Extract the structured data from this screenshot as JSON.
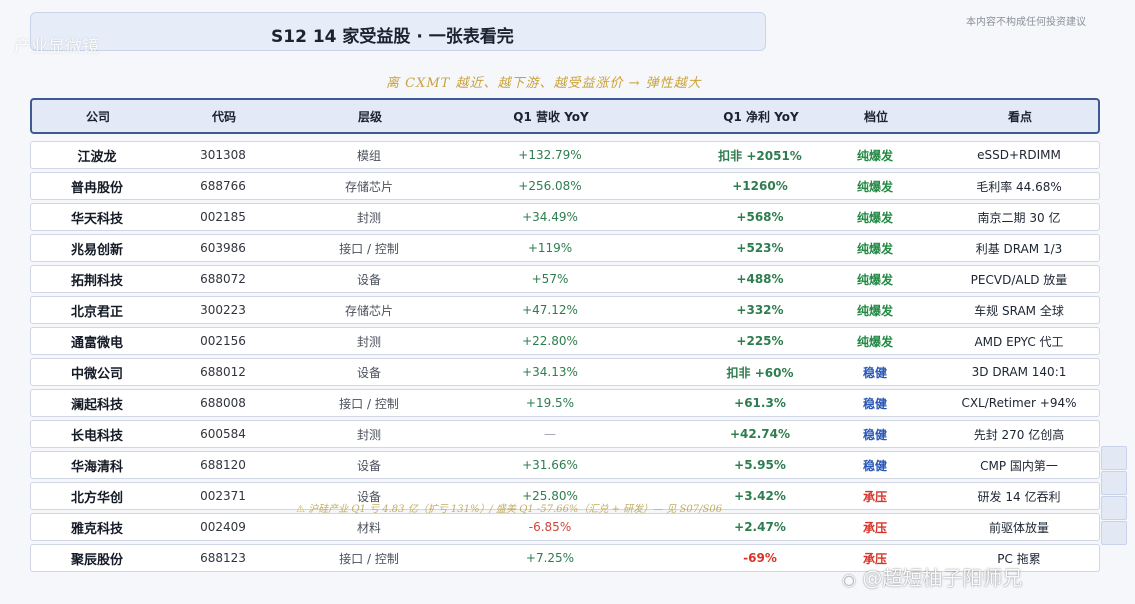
{
  "title": "S12  14 家受益股 · 一张表看完",
  "watermark_top": "产业显微镜",
  "disclaimer": "本内容不构成任何投资建议",
  "subtitle": "离  CXMT  越近、越下游、越受益涨价  →  弹性越大",
  "headers": {
    "company": "公司",
    "code": "代码",
    "layer": "层级",
    "rev": "Q1 营收 YoY",
    "profit": "Q1 净利 YoY",
    "tier": "档位",
    "view": "看点"
  },
  "rows": [
    {
      "company": "江波龙",
      "code": "301308",
      "layer": "模组",
      "rev": "+132.79%",
      "profit": "扣非 +2051%",
      "tier": "纯爆发",
      "view": "eSSD+RDIMM"
    },
    {
      "company": "普冉股份",
      "code": "688766",
      "layer": "存储芯片",
      "rev": "+256.08%",
      "profit": "+1260%",
      "tier": "纯爆发",
      "view": "毛利率 44.68%"
    },
    {
      "company": "华天科技",
      "code": "002185",
      "layer": "封测",
      "rev": "+34.49%",
      "profit": "+568%",
      "tier": "纯爆发",
      "view": "南京二期 30 亿"
    },
    {
      "company": "兆易创新",
      "code": "603986",
      "layer": "接口 / 控制",
      "rev": "+119%",
      "profit": "+523%",
      "tier": "纯爆发",
      "view": "利基 DRAM 1/3"
    },
    {
      "company": "拓荆科技",
      "code": "688072",
      "layer": "设备",
      "rev": "+57%",
      "profit": "+488%",
      "tier": "纯爆发",
      "view": "PECVD/ALD 放量"
    },
    {
      "company": "北京君正",
      "code": "300223",
      "layer": "存储芯片",
      "rev": "+47.12%",
      "profit": "+332%",
      "tier": "纯爆发",
      "view": "车规 SRAM 全球"
    },
    {
      "company": "通富微电",
      "code": "002156",
      "layer": "封测",
      "rev": "+22.80%",
      "profit": "+225%",
      "tier": "纯爆发",
      "view": "AMD EPYC 代工"
    },
    {
      "company": "中微公司",
      "code": "688012",
      "layer": "设备",
      "rev": "+34.13%",
      "profit": "扣非 +60%",
      "tier": "稳健",
      "view": "3D DRAM 140:1"
    },
    {
      "company": "澜起科技",
      "code": "688008",
      "layer": "接口 / 控制",
      "rev": "+19.5%",
      "profit": "+61.3%",
      "tier": "稳健",
      "view": "CXL/Retimer +94%"
    },
    {
      "company": "长电科技",
      "code": "600584",
      "layer": "封测",
      "rev": "—",
      "profit": "+42.74%",
      "tier": "稳健",
      "view": "先封 270 亿创高"
    },
    {
      "company": "华海清科",
      "code": "688120",
      "layer": "设备",
      "rev": "+31.66%",
      "profit": "+5.95%",
      "tier": "稳健",
      "view": "CMP 国内第一"
    },
    {
      "company": "北方华创",
      "code": "002371",
      "layer": "设备",
      "rev": "+25.80%",
      "profit": "+3.42%",
      "tier": "承压",
      "view": "研发 14 亿吞利"
    },
    {
      "company": "雅克科技",
      "code": "002409",
      "layer": "材料",
      "rev": "-6.85%",
      "profit": "+2.47%",
      "tier": "承压",
      "view": "前驱体放量"
    },
    {
      "company": "聚辰股份",
      "code": "688123",
      "layer": "接口 / 控制",
      "rev": "+7.25%",
      "profit": "-69%",
      "tier": "承压",
      "view": "PC 拖累"
    }
  ],
  "tier_colors": {
    "纯爆发": "#238a45",
    "稳健": "#2a57b5",
    "承压": "#d8332a"
  },
  "footnote_icon": "warning-icon",
  "footnote": "沪硅产业  Q1 亏 4.83 亿（扩亏 131%）/ 盛美 Q1 -57.66%（汇兑 + 研发）— 见 S07/S06",
  "watermark_bottom": "@超短柚子阳师兄",
  "watermark_icon": "weibo-icon"
}
